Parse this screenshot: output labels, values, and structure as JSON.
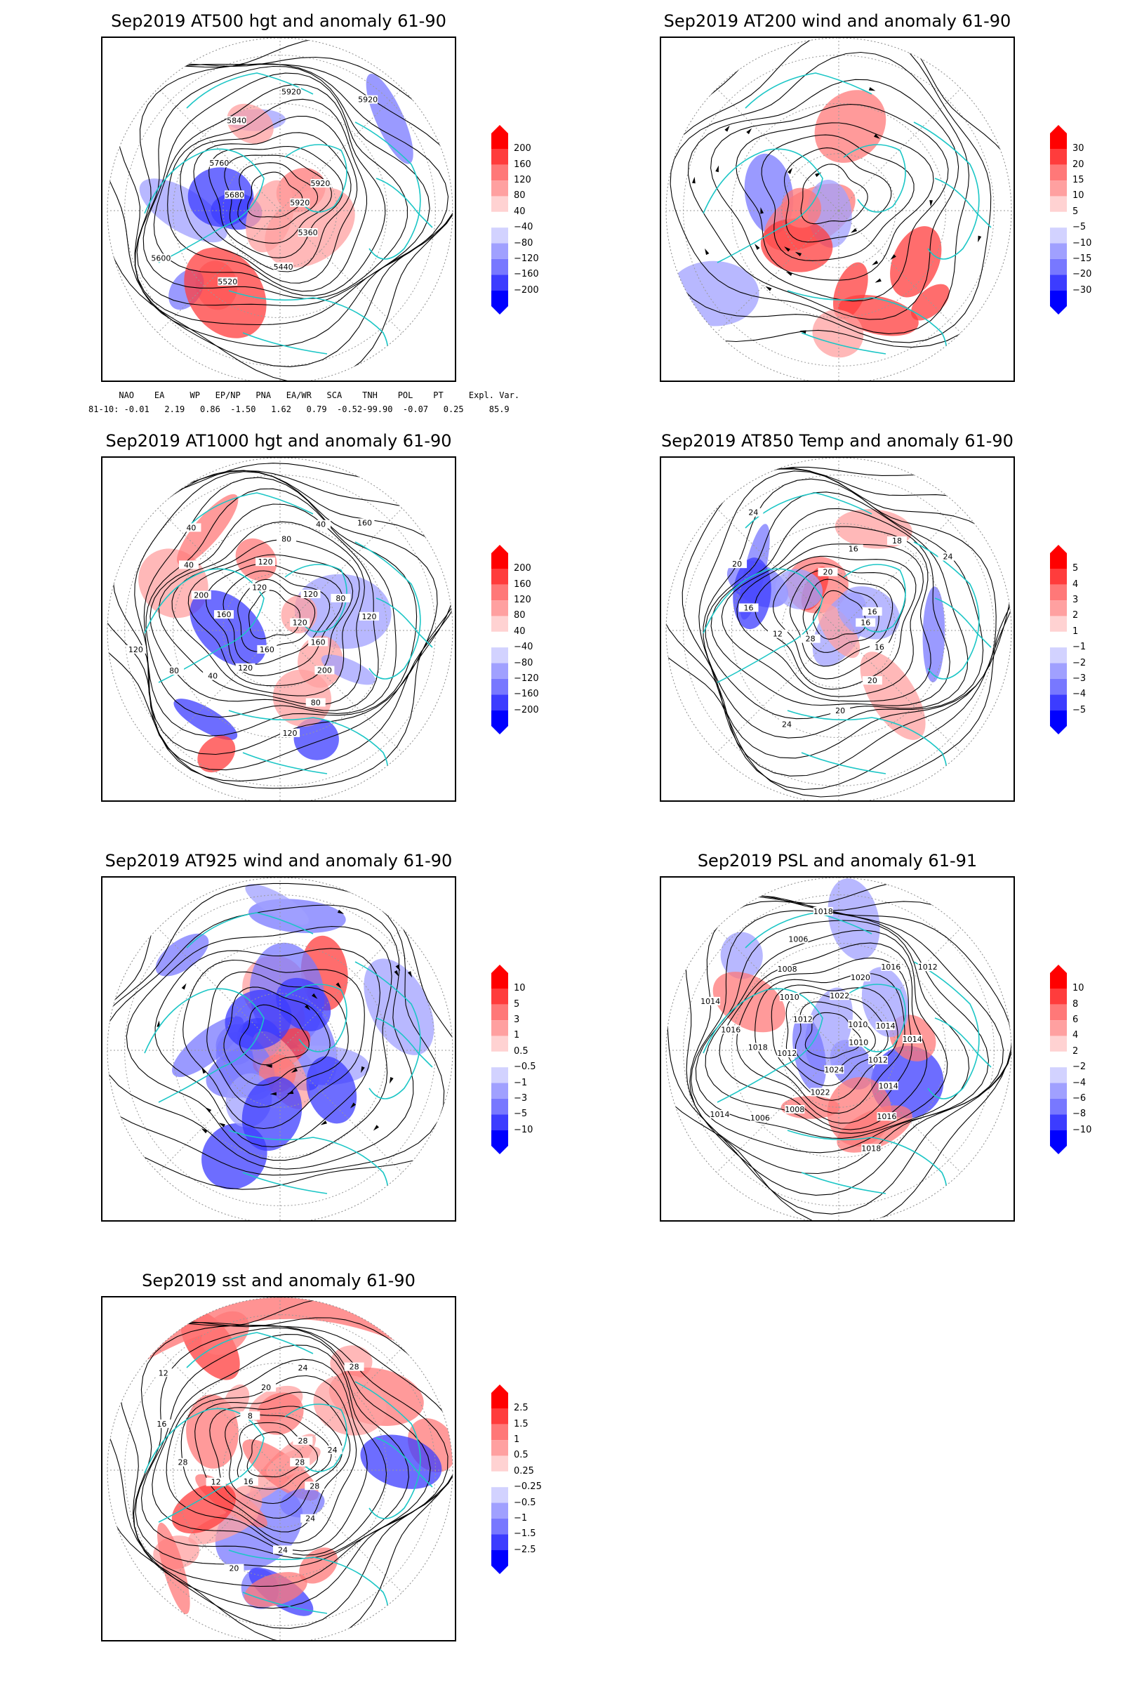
{
  "panels": [
    {
      "title": "Sep2019 AT500 hgt and anomaly 61-90",
      "colorbar": [
        "200",
        "160",
        "120",
        "80",
        "40",
        "−40",
        "−80",
        "−120",
        "−160",
        "−200"
      ],
      "contours": [
        "5920",
        "5360",
        "5440",
        "5520",
        "5600",
        "5680",
        "5760",
        "5840",
        "5920",
        "5920",
        "5920"
      ]
    },
    {
      "title": "Sep2019 AT200 wind and anomaly 61-90",
      "colorbar": [
        "30",
        "20",
        "15",
        "10",
        "5",
        "−5",
        "−10",
        "−15",
        "−20",
        "−30"
      ],
      "contours": []
    },
    {
      "title": "Sep2019 AT1000 hgt and anomaly 61-90",
      "colorbar": [
        "200",
        "160",
        "120",
        "80",
        "40",
        "−40",
        "−80",
        "−120",
        "−160",
        "−200"
      ],
      "contours": [
        "120",
        "160",
        "200",
        "80",
        "120",
        "160",
        "120",
        "40",
        "80",
        "120",
        "160",
        "200",
        "40",
        "40",
        "120",
        "120",
        "80",
        "40",
        "160",
        "120",
        "80",
        "120"
      ]
    },
    {
      "title": "Sep2019 AT850 Temp and anomaly 61-90",
      "colorbar": [
        "5",
        "4",
        "3",
        "2",
        "1",
        "−1",
        "−2",
        "−3",
        "−4",
        "−5"
      ],
      "contours": [
        "16",
        "16",
        "20",
        "20",
        "24",
        "28",
        "12",
        "16",
        "20",
        "24",
        "20",
        "16",
        "18",
        "24",
        "16"
      ]
    },
    {
      "title": "Sep2019 AT925 wind and anomaly 61-90",
      "colorbar": [
        "10",
        "5",
        "3",
        "1",
        "0.5",
        "−0.5",
        "−1",
        "−3",
        "−5",
        "−10"
      ],
      "contours": []
    },
    {
      "title": "Sep2019 PSL and anomaly 61-91",
      "colorbar": [
        "10",
        "8",
        "6",
        "4",
        "2",
        "−2",
        "−4",
        "−6",
        "−8",
        "−10"
      ],
      "contours": [
        "1010",
        "1012",
        "1014",
        "1016",
        "1018",
        "1024",
        "1022",
        "1008",
        "1006",
        "1014",
        "1012",
        "1018",
        "1016",
        "1014",
        "1012",
        "1010",
        "1008",
        "1006",
        "1018",
        "1022",
        "1020",
        "1016",
        "1012",
        "1010",
        "1014",
        "1014"
      ]
    },
    {
      "title": "Sep2019 sst and anomaly 61-90",
      "colorbar": [
        "2.5",
        "1.5",
        "1",
        "0.5",
        "0.25",
        "−0.25",
        "−0.5",
        "−1",
        "−1.5",
        "−2.5"
      ],
      "contours": [
        "28",
        "28",
        "24",
        "24",
        "20",
        "16",
        "12",
        "28",
        "16",
        "12",
        "8",
        "20",
        "24",
        "28",
        "28",
        "24"
      ]
    }
  ],
  "teleconnection": {
    "header": "      NAO    EA     WP   EP/NP   PNA   EA/WR   SCA    TNH    POL    PT     Expl. Var.",
    "values": "81-10: -0.01   2.19   0.86  -1.50   1.62   0.79  -0.52-99.90  -0.07   0.25     85.9"
  },
  "colors": {
    "scale": [
      "#ff0000",
      "#ff3c3c",
      "#ff7878",
      "#ffa0a0",
      "#ffd2d2",
      "#ffffff",
      "#d2d2ff",
      "#a0a0ff",
      "#7878ff",
      "#3c3cff",
      "#0000ff"
    ],
    "coast": "#1cc6c6"
  }
}
